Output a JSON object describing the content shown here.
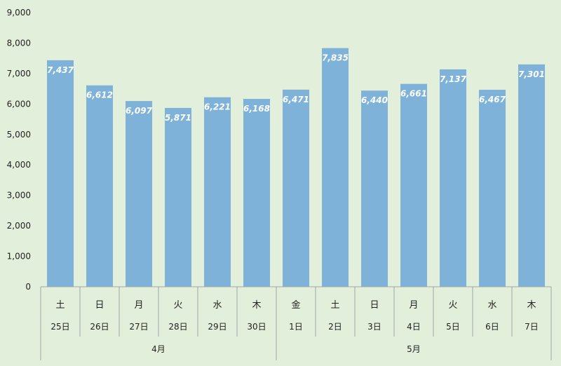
{
  "chart_data": {
    "type": "bar",
    "categories": [
      {
        "weekday": "土",
        "date": "25日"
      },
      {
        "weekday": "日",
        "date": "26日"
      },
      {
        "weekday": "月",
        "date": "27日"
      },
      {
        "weekday": "火",
        "date": "28日"
      },
      {
        "weekday": "水",
        "date": "29日"
      },
      {
        "weekday": "木",
        "date": "30日"
      },
      {
        "weekday": "金",
        "date": "1日"
      },
      {
        "weekday": "土",
        "date": "2日"
      },
      {
        "weekday": "日",
        "date": "3日"
      },
      {
        "weekday": "月",
        "date": "4日"
      },
      {
        "weekday": "火",
        "date": "5日"
      },
      {
        "weekday": "水",
        "date": "6日"
      },
      {
        "weekday": "木",
        "date": "7日"
      }
    ],
    "groups": [
      {
        "label": "4月",
        "count": 6
      },
      {
        "label": "5月",
        "count": 7
      }
    ],
    "values": [
      7437,
      6612,
      6097,
      5871,
      6221,
      6168,
      6471,
      7835,
      6440,
      6661,
      7137,
      6467,
      7301
    ],
    "data_labels": [
      "7,437",
      "6,612",
      "6,097",
      "5,871",
      "6,221",
      "6,168",
      "6,471",
      "7,835",
      "6,440",
      "6,661",
      "7,137",
      "6,467",
      "7,301"
    ],
    "yticks": [
      "0",
      "1,000",
      "2,000",
      "3,000",
      "4,000",
      "5,000",
      "6,000",
      "7,000",
      "8,000",
      "9,000"
    ],
    "ylim": [
      0,
      9000
    ],
    "grid": false,
    "legend": "none",
    "colors": {
      "bar": "#7fb2d8",
      "background": "#e2efda",
      "axis": "#a6a6a6"
    }
  }
}
